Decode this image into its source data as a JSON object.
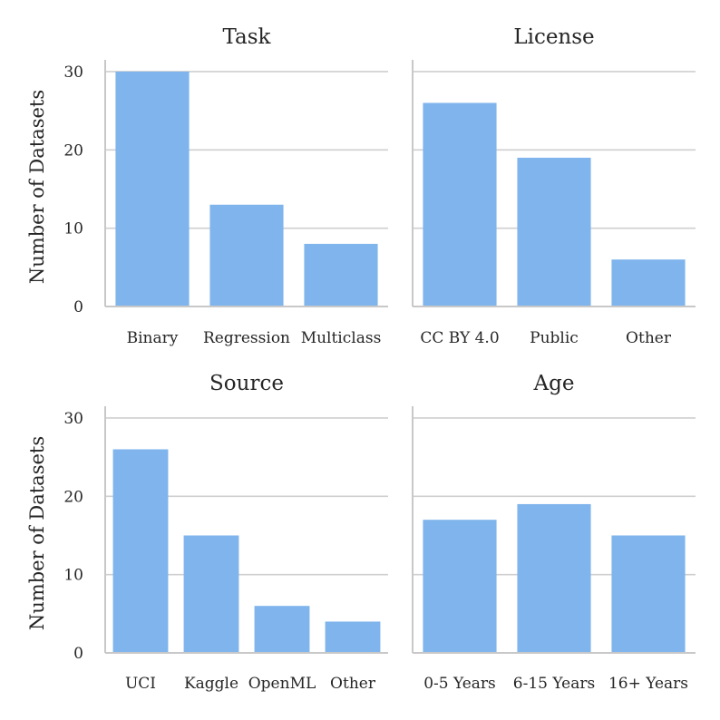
{
  "chart_data": [
    {
      "type": "bar",
      "title": "Task",
      "categories": [
        "Binary",
        "Regression",
        "Multiclass"
      ],
      "values": [
        30,
        13,
        8
      ],
      "ylabel": "Number of Datasets",
      "yticks": [
        0,
        10,
        20,
        30
      ],
      "ylim": [
        0,
        31.5
      ],
      "grid": true
    },
    {
      "type": "bar",
      "title": "License",
      "categories": [
        "CC BY 4.0",
        "Public",
        "Other"
      ],
      "values": [
        26,
        19,
        6
      ],
      "ylabel": "",
      "yticks": [
        0,
        10,
        20,
        30
      ],
      "ylim": [
        0,
        31.5
      ],
      "grid": true
    },
    {
      "type": "bar",
      "title": "Source",
      "categories": [
        "UCI",
        "Kaggle",
        "OpenML",
        "Other"
      ],
      "values": [
        26,
        15,
        6,
        4
      ],
      "ylabel": "Number of Datasets",
      "yticks": [
        0,
        10,
        20,
        30
      ],
      "ylim": [
        0,
        31.5
      ],
      "grid": true
    },
    {
      "type": "bar",
      "title": "Age",
      "categories": [
        "0-5 Years",
        "6-15 Years",
        "16+ Years"
      ],
      "values": [
        17,
        19,
        15
      ],
      "ylabel": "",
      "yticks": [
        0,
        10,
        20,
        30
      ],
      "ylim": [
        0,
        31.5
      ],
      "grid": true
    }
  ],
  "colors": {
    "bar": "#7fb4ec",
    "grid": "#cfcfcf",
    "axis": "#c8c8c8",
    "text": "#262626"
  }
}
